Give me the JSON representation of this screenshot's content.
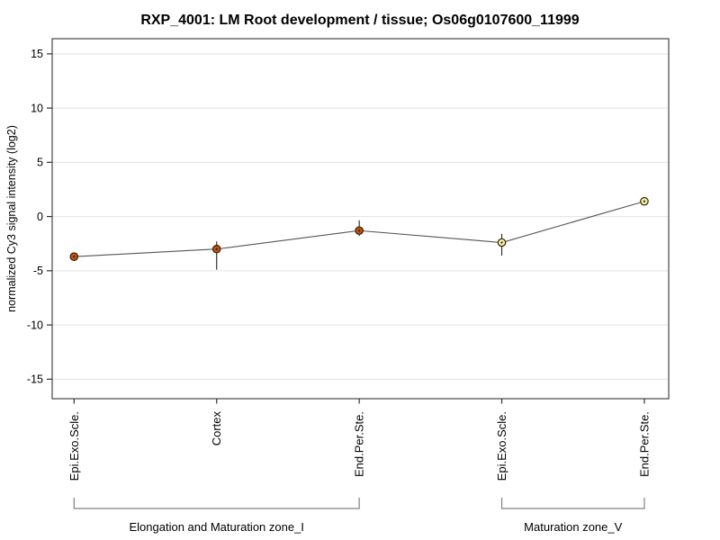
{
  "chart_data": {
    "type": "line",
    "title": "RXP_4001: LM Root development / tissue; Os06g0107600_11999",
    "ylabel": "normalized Cy3 signal intensity (log2)",
    "xlabel": "",
    "ylim": [
      -16.8,
      16.4
    ],
    "yticks": [
      15,
      10,
      5,
      0,
      -5,
      -10,
      -15
    ],
    "grid": "horizontal",
    "legend": "none",
    "categories": [
      "Epi.Exo.Scle.",
      "Cortex",
      "End.Per.Ste.",
      "Epi.Exo.Scle.",
      "End.Per.Ste."
    ],
    "series": [
      {
        "name": "normalized Cy3 signal intensity (log2)",
        "values": [
          -3.7,
          -3.0,
          -1.3,
          -2.4,
          1.4
        ],
        "error_bars": [
          null,
          [
            -4.9,
            -2.3
          ],
          [
            -1.8,
            -0.35
          ],
          [
            -3.6,
            -1.6
          ],
          null
        ],
        "point_colors": [
          "#c7500f",
          "#c7500f",
          "#c7500f",
          "#f1f0a2",
          "#f1f0a2"
        ]
      }
    ],
    "group_brackets": [
      {
        "label": "Elongation and Maturation zone_I",
        "from_index": 0,
        "to_index": 2
      },
      {
        "label": "Maturation zone_V",
        "from_index": 3,
        "to_index": 4
      }
    ],
    "colors": {
      "line": "#555555",
      "error_bar": "#222222",
      "marker_border": "#332200",
      "marker_center_dot": "#222222",
      "grid": "#e3e3e3",
      "box_border": "#454545",
      "tick": "#333333",
      "bracket": "#808080",
      "background": "#ffffff"
    }
  }
}
